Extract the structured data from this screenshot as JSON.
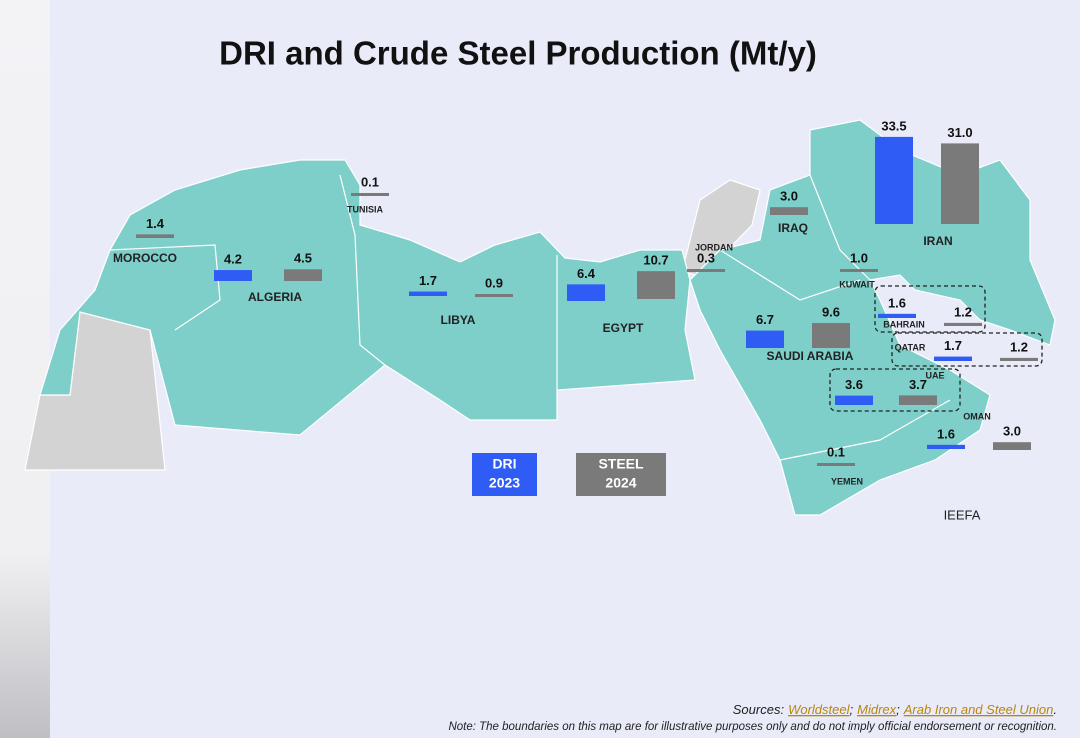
{
  "title": "DRI and Crude Steel Production (Mt/y)",
  "countries": [
    {
      "name": "MOROCCO",
      "steel": {
        "value": 1.4,
        "label": "1.4"
      }
    },
    {
      "name": "ALGERIA",
      "dri": {
        "value": 4.2,
        "label": "4.2"
      },
      "steel": {
        "value": 4.5,
        "label": "4.5"
      }
    },
    {
      "name": "TUNISIA",
      "steel": {
        "value": 0.1,
        "label": "0.1"
      }
    },
    {
      "name": "LIBYA",
      "dri": {
        "value": 1.7,
        "label": "1.7"
      },
      "steel": {
        "value": 0.9,
        "label": "0.9"
      }
    },
    {
      "name": "EGYPT",
      "dri": {
        "value": 6.4,
        "label": "6.4"
      },
      "steel": {
        "value": 10.7,
        "label": "10.7"
      }
    },
    {
      "name": "JORDAN",
      "steel": {
        "value": 0.3,
        "label": "0.3"
      }
    },
    {
      "name": "IRAQ",
      "steel": {
        "value": 3.0,
        "label": "3.0"
      }
    },
    {
      "name": "IRAN",
      "dri": {
        "value": 33.5,
        "label": "33.5"
      },
      "steel": {
        "value": 31.0,
        "label": "31.0"
      }
    },
    {
      "name": "KUWAIT",
      "steel": {
        "value": 1.0,
        "label": "1.0"
      }
    },
    {
      "name": "BAHRAIN",
      "dri": {
        "value": 1.6,
        "label": "1.6"
      },
      "steel": {
        "value": 1.2,
        "label": "1.2"
      }
    },
    {
      "name": "QATAR",
      "dri": {
        "value": 1.7,
        "label": "1.7"
      },
      "steel": {
        "value": 1.2,
        "label": "1.2"
      }
    },
    {
      "name": "SAUDI ARABIA",
      "dri": {
        "value": 6.7,
        "label": "6.7"
      },
      "steel": {
        "value": 9.6,
        "label": "9.6"
      }
    },
    {
      "name": "UAE",
      "dri": {
        "value": 3.6,
        "label": "3.6"
      },
      "steel": {
        "value": 3.7,
        "label": "3.7"
      }
    },
    {
      "name": "OMAN",
      "dri": {
        "value": 1.6,
        "label": "1.6"
      },
      "steel": {
        "value": 3.0,
        "label": "3.0"
      }
    },
    {
      "name": "YEMEN",
      "steel": {
        "value": 0.1,
        "label": "0.1"
      }
    }
  ],
  "legend": [
    {
      "name": "DRI",
      "year": "2023",
      "color": "#2f5cf5"
    },
    {
      "name": "STEEL",
      "year": "2024",
      "color": "#7a7a7a"
    }
  ],
  "credit": "IEEFA",
  "sources": {
    "label": "Sources:",
    "items": [
      "Worldsteel",
      "Midrex",
      "Arab Iron and Steel Union"
    ],
    "separator": ";",
    "end": "."
  },
  "note": "Note: The boundaries on this map are for illustrative purposes only and do not imply official endorsement or recognition."
}
